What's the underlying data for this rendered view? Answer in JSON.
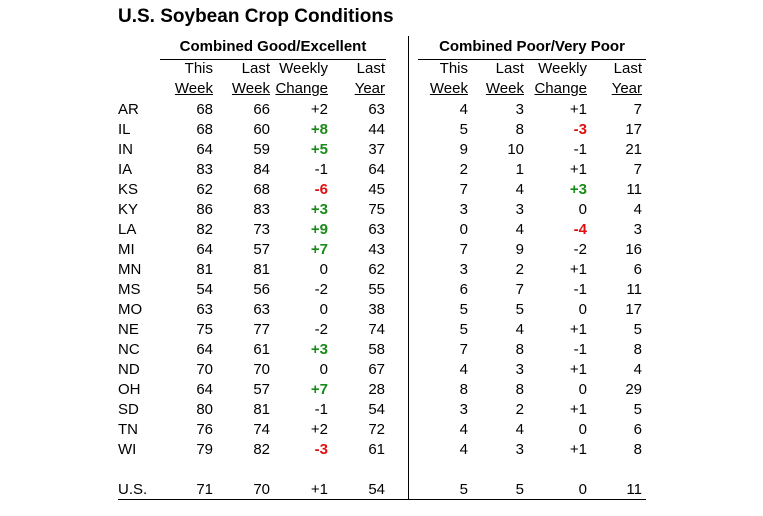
{
  "chart_data": {
    "type": "table",
    "title": "U.S. Soybean Crop Conditions",
    "groups": [
      "Combined Good/Excellent",
      "Combined Poor/Very Poor"
    ],
    "column_headers": [
      [
        "This",
        "Week"
      ],
      [
        "Last",
        "Week"
      ],
      [
        "Weekly",
        "Change"
      ],
      [
        "Last",
        "Year"
      ],
      [
        "This",
        "Week"
      ],
      [
        "Last",
        "Week"
      ],
      [
        "Weekly",
        "Change"
      ],
      [
        "Last",
        "Year"
      ]
    ],
    "rows": [
      {
        "state": "AR",
        "values": [
          "68",
          "66",
          "+2",
          "63",
          "4",
          "3",
          "+1",
          "7"
        ]
      },
      {
        "state": "IL",
        "values": [
          "68",
          "60",
          "+8",
          "44",
          "5",
          "8",
          "-3",
          "17"
        ]
      },
      {
        "state": "IN",
        "values": [
          "64",
          "59",
          "+5",
          "37",
          "9",
          "10",
          "-1",
          "21"
        ]
      },
      {
        "state": "IA",
        "values": [
          "83",
          "84",
          "-1",
          "64",
          "2",
          "1",
          "+1",
          "7"
        ]
      },
      {
        "state": "KS",
        "values": [
          "62",
          "68",
          "-6",
          "45",
          "7",
          "4",
          "+3",
          "11"
        ]
      },
      {
        "state": "KY",
        "values": [
          "86",
          "83",
          "+3",
          "75",
          "3",
          "3",
          "0",
          "4"
        ]
      },
      {
        "state": "LA",
        "values": [
          "82",
          "73",
          "+9",
          "63",
          "0",
          "4",
          "-4",
          "3"
        ]
      },
      {
        "state": "MI",
        "values": [
          "64",
          "57",
          "+7",
          "43",
          "7",
          "9",
          "-2",
          "16"
        ]
      },
      {
        "state": "MN",
        "values": [
          "81",
          "81",
          "0",
          "62",
          "3",
          "2",
          "+1",
          "6"
        ]
      },
      {
        "state": "MS",
        "values": [
          "54",
          "56",
          "-2",
          "55",
          "6",
          "7",
          "-1",
          "11"
        ]
      },
      {
        "state": "MO",
        "values": [
          "63",
          "63",
          "0",
          "38",
          "5",
          "5",
          "0",
          "17"
        ]
      },
      {
        "state": "NE",
        "values": [
          "75",
          "77",
          "-2",
          "74",
          "5",
          "4",
          "+1",
          "5"
        ]
      },
      {
        "state": "NC",
        "values": [
          "64",
          "61",
          "+3",
          "58",
          "7",
          "8",
          "-1",
          "8"
        ]
      },
      {
        "state": "ND",
        "values": [
          "70",
          "70",
          "0",
          "67",
          "4",
          "3",
          "+1",
          "4"
        ]
      },
      {
        "state": "OH",
        "values": [
          "64",
          "57",
          "+7",
          "28",
          "8",
          "8",
          "0",
          "29"
        ]
      },
      {
        "state": "SD",
        "values": [
          "80",
          "81",
          "-1",
          "54",
          "3",
          "2",
          "+1",
          "5"
        ]
      },
      {
        "state": "TN",
        "values": [
          "76",
          "74",
          "+2",
          "72",
          "4",
          "4",
          "0",
          "6"
        ]
      },
      {
        "state": "WI",
        "values": [
          "79",
          "82",
          "-3",
          "61",
          "4",
          "3",
          "+1",
          "8"
        ]
      }
    ],
    "total": {
      "state": "U.S.",
      "values": [
        "71",
        "70",
        "+1",
        "54",
        "5",
        "5",
        "0",
        "11"
      ]
    },
    "highlights": {
      "good_excellent_change": {
        "IL": "up",
        "IN": "up",
        "KS": "down",
        "KY": "up",
        "LA": "up",
        "MI": "up",
        "NC": "up",
        "OH": "up",
        "WI": "down"
      },
      "poor_very_poor_change": {
        "IL": "down",
        "KS": "up",
        "LA": "down"
      }
    },
    "colors": {
      "highlight_up": "#1a8a1a",
      "highlight_down": "#e01010",
      "text": "#000000"
    }
  }
}
